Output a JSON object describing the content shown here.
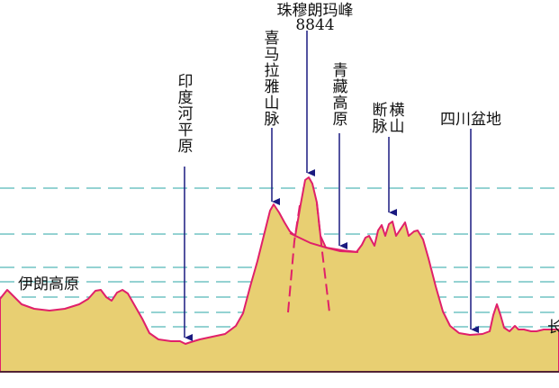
{
  "labels": {
    "everest_name": "珠穆朗玛峰",
    "everest_height": "8844",
    "himalaya": "喜马拉雅山脉",
    "indus_plain": "印度河平原",
    "tibet_plateau": "青藏高原",
    "hengduan": "横断山脉",
    "hengduan_line1": "横山",
    "hengduan_line2": "断脉",
    "sichuan_basin": "四川盆地",
    "iran_plateau": "伊朗高原",
    "yangtze_partial": "长"
  },
  "colors": {
    "terrain_fill": "#e8cf72",
    "terrain_outline": "#e0206a",
    "guide_lines": "#2aa6a6",
    "arrows": "#1a1a80",
    "ground_line": "#222222"
  }
}
